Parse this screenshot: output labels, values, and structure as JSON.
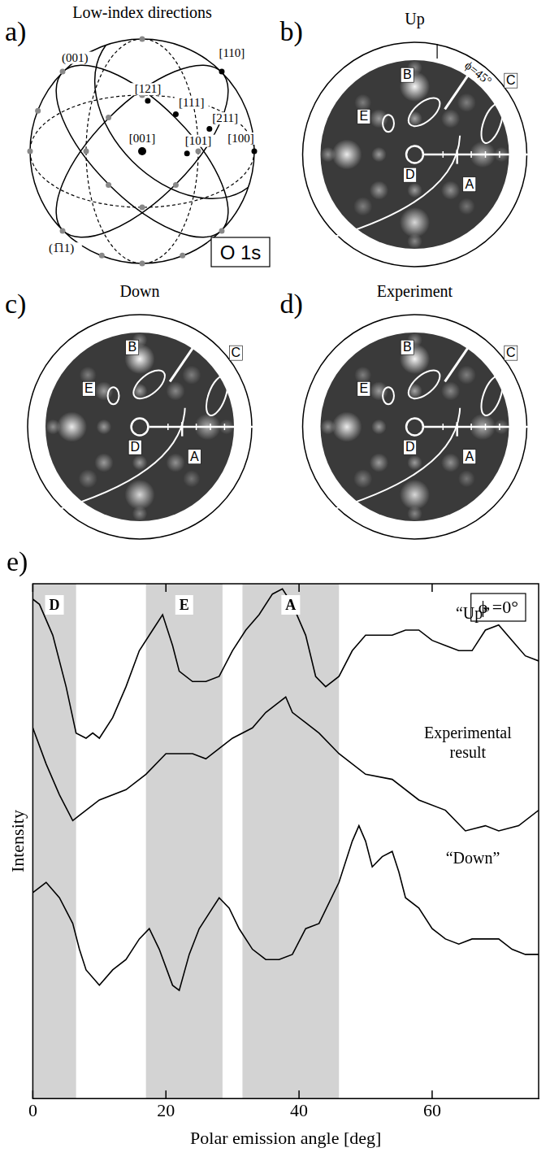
{
  "figure": {
    "panel_a": {
      "letter": "a)",
      "title": "Low-index directions",
      "direction_labels": [
        "(001)",
        "[110]",
        "[121]",
        "[111]",
        "[211]",
        "[001]",
        "[101]",
        "[100]",
        "(1̅11)"
      ],
      "box_label": "O 1s"
    },
    "pattern_panels": [
      {
        "letter": "b)",
        "title": "Up",
        "angle_label": "ϕ=45°",
        "feature_labels": [
          "A",
          "B",
          "C",
          "D",
          "E"
        ]
      },
      {
        "letter": "c)",
        "title": "Down",
        "feature_labels": [
          "A",
          "B",
          "C",
          "D",
          "E"
        ]
      },
      {
        "letter": "d)",
        "title": "Experiment",
        "feature_labels": [
          "A",
          "B",
          "C",
          "D",
          "E"
        ]
      }
    ]
  },
  "chart_data": {
    "panel_label": "e)",
    "type": "line",
    "xlabel": "Polar emission angle [deg]",
    "ylabel": "Intensity",
    "xlim": [
      0,
      76
    ],
    "xticks": [
      0,
      20,
      40,
      60
    ],
    "ylim": [
      0,
      100
    ],
    "tick_labels": "x",
    "grid": false,
    "annotations": [
      "ϕ =0°"
    ],
    "bands": [
      {
        "label": "D",
        "from": 0,
        "to": 6.5
      },
      {
        "label": "E",
        "from": 17,
        "to": 28.5
      },
      {
        "label": "A",
        "from": 31.5,
        "to": 46
      }
    ],
    "series": [
      {
        "name": "“Up”",
        "color": "#000000",
        "x": [
          0,
          1,
          3,
          5,
          6.5,
          8,
          9,
          10,
          12,
          14,
          16,
          18,
          19.5,
          21,
          22,
          24,
          26,
          28,
          30,
          32,
          34,
          36,
          37.5,
          39,
          41,
          42.5,
          44,
          46,
          48,
          50,
          52,
          54,
          56,
          58,
          60,
          62,
          64,
          66,
          68,
          70,
          72,
          74,
          76
        ],
        "values": [
          97,
          96,
          90,
          80,
          71,
          70,
          71,
          70,
          74,
          80,
          87,
          91,
          94,
          88,
          83,
          81,
          81,
          82,
          87,
          91,
          94,
          98,
          99,
          96,
          90,
          82,
          80,
          82,
          87,
          90,
          90,
          90,
          91,
          91,
          89,
          88,
          87,
          87,
          91,
          92,
          89,
          86,
          85
        ]
      },
      {
        "name": "Experimental result",
        "color": "#000000",
        "x": [
          0,
          2,
          4,
          6,
          7,
          10,
          14,
          17,
          20,
          22,
          24,
          26,
          28,
          30,
          33,
          35,
          37,
          38,
          39,
          41,
          43,
          46,
          50,
          54,
          58,
          62,
          65,
          68,
          70,
          73,
          76
        ],
        "values": [
          72,
          65,
          59,
          54,
          55,
          58,
          60,
          63,
          67,
          67,
          67,
          66,
          68,
          70,
          72,
          75,
          77,
          78,
          75,
          73,
          71,
          67,
          63,
          62,
          58,
          56,
          52,
          53,
          52,
          53,
          56
        ]
      },
      {
        "name": "“Down”",
        "color": "#000000",
        "x": [
          0,
          2,
          4,
          6,
          7,
          8,
          10,
          12,
          14,
          16,
          17.5,
          19,
          21,
          22,
          23.5,
          25,
          27,
          28,
          29.5,
          31,
          33,
          35,
          37,
          39,
          41,
          43,
          46,
          48,
          49,
          50,
          51,
          52.5,
          54,
          55,
          56,
          58,
          60,
          62,
          64,
          66,
          68,
          70,
          72,
          74,
          76
        ],
        "values": [
          40,
          42,
          39,
          34,
          29,
          25,
          22,
          25,
          27,
          31,
          33,
          29,
          22,
          21,
          28,
          33,
          37,
          39,
          37,
          33,
          29,
          27,
          27,
          28,
          33,
          34,
          42,
          50,
          53,
          50,
          45,
          47,
          48,
          44,
          39,
          37,
          33,
          31,
          30,
          31,
          31,
          31,
          29,
          28,
          28
        ]
      }
    ]
  }
}
